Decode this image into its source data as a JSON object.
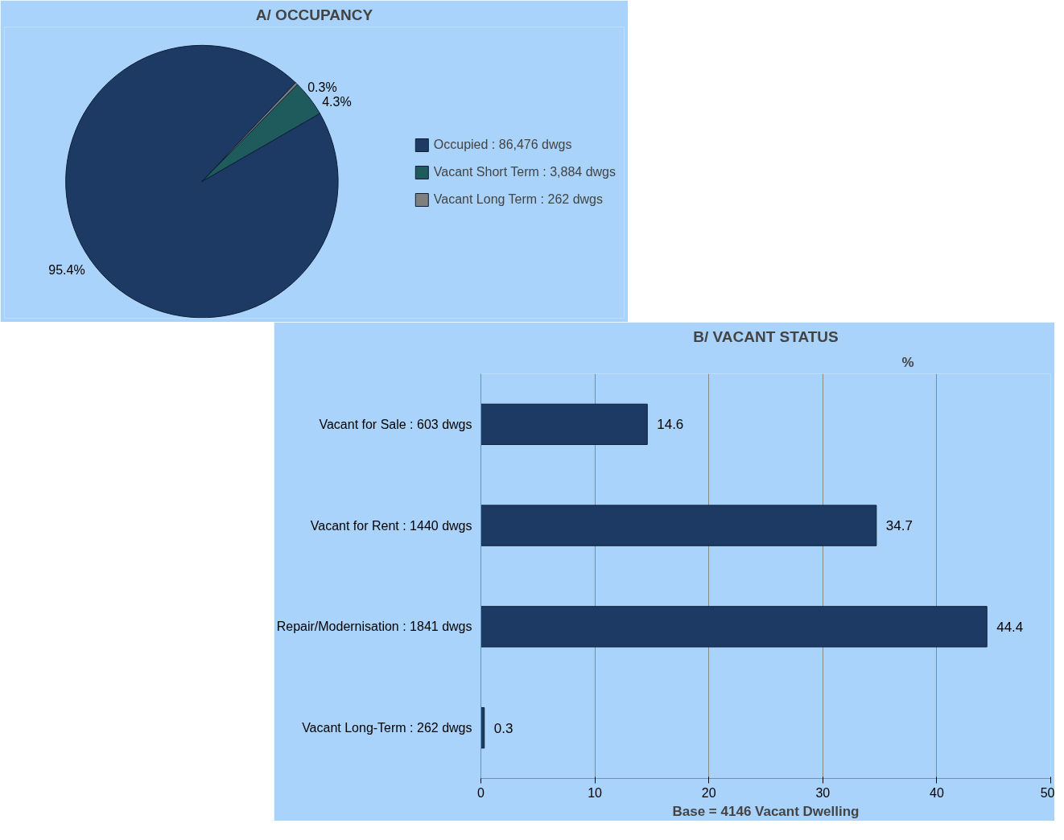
{
  "chart_data": [
    {
      "type": "pie",
      "title": "A/ OCCUPANCY",
      "categories": [
        "Occupied : 86,476 dwgs",
        "Vacant Short Term : 3,884 dwgs",
        "Vacant Long Term : 262 dwgs"
      ],
      "values": [
        95.4,
        4.3,
        0.3
      ],
      "colors": [
        "#1c3a63",
        "#1f5a5c",
        "#7f7f7f"
      ],
      "value_labels": [
        "95.4%",
        "4.3%",
        "0.3%"
      ],
      "legend": "right"
    },
    {
      "type": "bar",
      "orientation": "horizontal",
      "title": "B/ VACANT STATUS",
      "categories": [
        "Vacant for Sale : 603 dwgs",
        "Vacant for Rent : 1440 dwgs",
        "Repair/Modernisation : 1841 dwgs",
        "Vacant Long-Term : 262 dwgs"
      ],
      "values": [
        14.6,
        34.7,
        44.4,
        0.3
      ],
      "color": "#1c3a63",
      "data_labels": true,
      "xlim": [
        0,
        50
      ],
      "xticks": [
        0,
        10,
        20,
        30,
        40,
        50
      ],
      "grid": "x",
      "xlabel": "Base = 4146 Vacant Dwelling",
      "annotations": [
        "%"
      ]
    }
  ]
}
